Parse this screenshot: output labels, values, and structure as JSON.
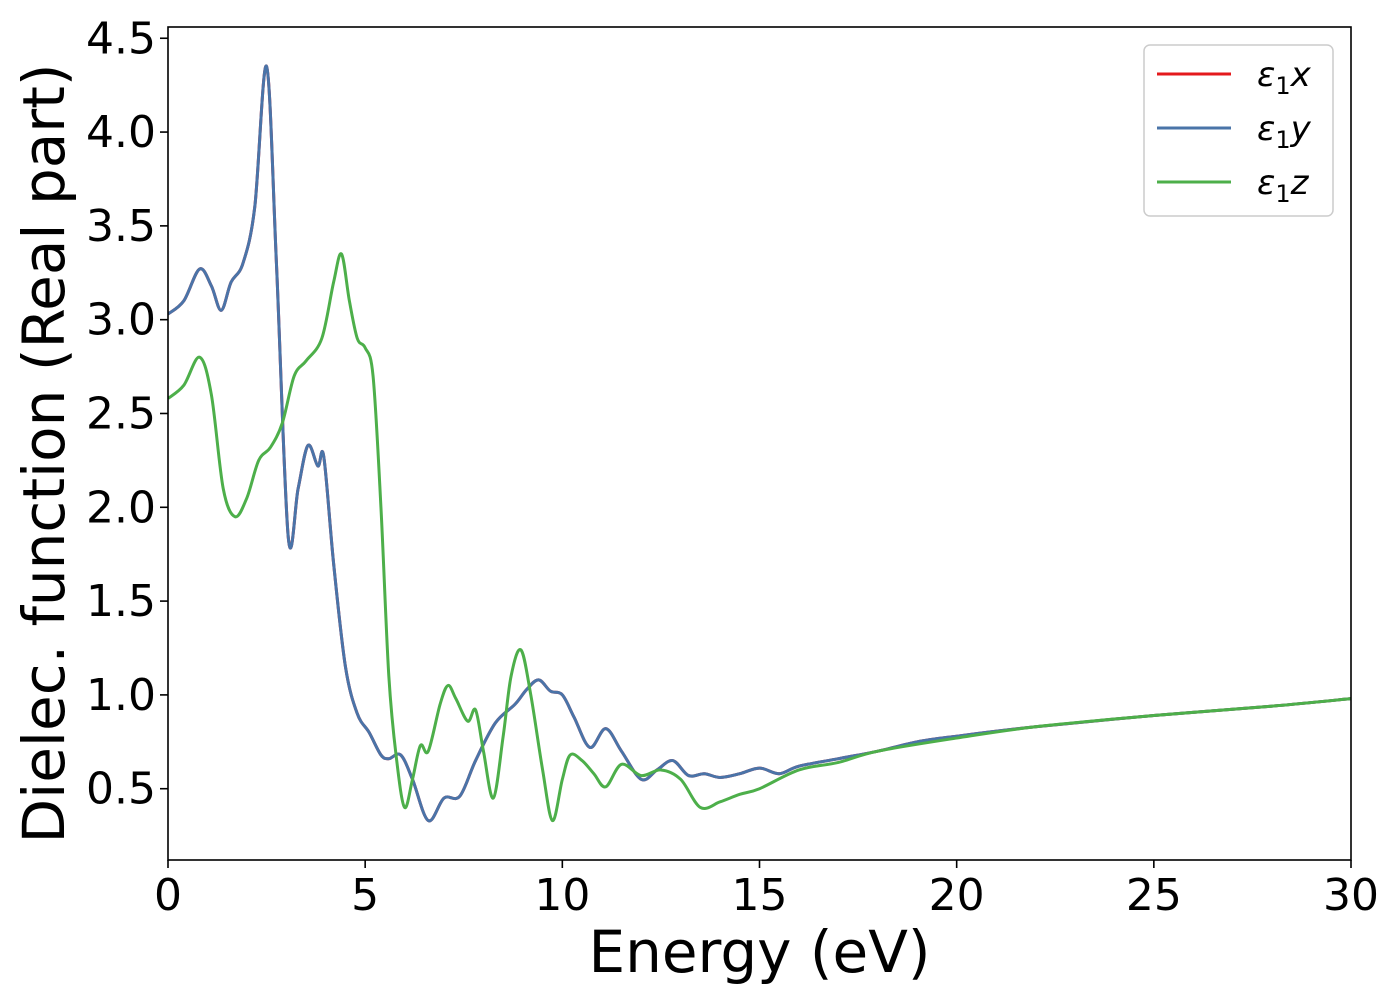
{
  "chart_data": {
    "type": "line",
    "title": "",
    "xlabel": "Energy (eV)",
    "ylabel": "Dielec. function (Real part)",
    "xlim": [
      0,
      30
    ],
    "ylim": [
      0.12,
      4.56
    ],
    "xticks": [
      0,
      5,
      10,
      15,
      20,
      25,
      30
    ],
    "xtick_labels": [
      "0",
      "5",
      "10",
      "15",
      "20",
      "25",
      "30"
    ],
    "yticks": [
      0.5,
      1.0,
      1.5,
      2.0,
      2.5,
      3.0,
      3.5,
      4.0,
      4.5
    ],
    "ytick_labels": [
      "0.5",
      "1.0",
      "1.5",
      "2.0",
      "2.5",
      "3.0",
      "3.5",
      "4.0",
      "4.5"
    ],
    "grid": false,
    "legend_position": "top-right",
    "series": [
      {
        "name": "ε₁x",
        "legend_base": "ε",
        "legend_sub": "1",
        "legend_suffix": "x",
        "color": "#e41a1c",
        "x": [
          0,
          0.4,
          0.8,
          1.1,
          1.35,
          1.6,
          1.9,
          2.2,
          2.5,
          2.75,
          3.05,
          3.3,
          3.55,
          3.8,
          3.95,
          4.2,
          4.5,
          4.8,
          5.1,
          5.4,
          5.6,
          5.9,
          6.2,
          6.6,
          7.0,
          7.4,
          7.8,
          8.3,
          8.8,
          9.1,
          9.4,
          9.7,
          10.0,
          10.3,
          10.7,
          11.1,
          11.5,
          12.0,
          12.4,
          12.8,
          13.2,
          13.6,
          14.0,
          14.5,
          15.0,
          15.5,
          16.0,
          17.0,
          18.0,
          19.0,
          20.0,
          22.0,
          25.0,
          28.0,
          30.0
        ],
        "y": [
          3.03,
          3.1,
          3.27,
          3.18,
          3.05,
          3.2,
          3.3,
          3.6,
          4.35,
          3.3,
          1.84,
          2.1,
          2.33,
          2.22,
          2.27,
          1.7,
          1.15,
          0.9,
          0.8,
          0.68,
          0.66,
          0.68,
          0.55,
          0.33,
          0.45,
          0.46,
          0.65,
          0.85,
          0.95,
          1.03,
          1.08,
          1.02,
          1.0,
          0.88,
          0.72,
          0.82,
          0.7,
          0.55,
          0.6,
          0.65,
          0.57,
          0.58,
          0.56,
          0.58,
          0.61,
          0.58,
          0.62,
          0.66,
          0.7,
          0.75,
          0.78,
          0.83,
          0.89,
          0.94,
          0.98
        ]
      },
      {
        "name": "ε₁y",
        "legend_base": "ε",
        "legend_sub": "1",
        "legend_suffix": "y",
        "color": "#4a74a8",
        "x": [
          0,
          0.4,
          0.8,
          1.1,
          1.35,
          1.6,
          1.9,
          2.2,
          2.5,
          2.75,
          3.05,
          3.3,
          3.55,
          3.8,
          3.95,
          4.2,
          4.5,
          4.8,
          5.1,
          5.4,
          5.6,
          5.9,
          6.2,
          6.6,
          7.0,
          7.4,
          7.8,
          8.3,
          8.8,
          9.1,
          9.4,
          9.7,
          10.0,
          10.3,
          10.7,
          11.1,
          11.5,
          12.0,
          12.4,
          12.8,
          13.2,
          13.6,
          14.0,
          14.5,
          15.0,
          15.5,
          16.0,
          17.0,
          18.0,
          19.0,
          20.0,
          22.0,
          25.0,
          28.0,
          30.0
        ],
        "y": [
          3.03,
          3.1,
          3.27,
          3.18,
          3.05,
          3.2,
          3.3,
          3.6,
          4.35,
          3.3,
          1.84,
          2.1,
          2.33,
          2.22,
          2.27,
          1.7,
          1.15,
          0.9,
          0.8,
          0.68,
          0.66,
          0.68,
          0.55,
          0.33,
          0.45,
          0.46,
          0.65,
          0.85,
          0.95,
          1.03,
          1.08,
          1.02,
          1.0,
          0.88,
          0.72,
          0.82,
          0.7,
          0.55,
          0.6,
          0.65,
          0.57,
          0.58,
          0.56,
          0.58,
          0.61,
          0.58,
          0.62,
          0.66,
          0.7,
          0.75,
          0.78,
          0.83,
          0.89,
          0.94,
          0.98
        ]
      },
      {
        "name": "ε₁z",
        "legend_base": "ε",
        "legend_sub": "1",
        "legend_suffix": "z",
        "color": "#4daf4a",
        "x": [
          0,
          0.4,
          0.8,
          1.1,
          1.4,
          1.7,
          2.0,
          2.3,
          2.6,
          2.9,
          3.2,
          3.5,
          3.9,
          4.2,
          4.4,
          4.6,
          4.8,
          5.0,
          5.2,
          5.4,
          5.6,
          5.8,
          6.0,
          6.2,
          6.4,
          6.6,
          6.9,
          7.1,
          7.3,
          7.6,
          7.8,
          8.0,
          8.25,
          8.5,
          8.7,
          8.95,
          9.2,
          9.5,
          9.75,
          10.0,
          10.2,
          10.5,
          10.8,
          11.1,
          11.5,
          12.0,
          12.5,
          13.0,
          13.5,
          14.0,
          14.5,
          15.0,
          16.0,
          17.0,
          18.0,
          20.0,
          22.0,
          25.0,
          28.0,
          30.0
        ],
        "y": [
          2.58,
          2.65,
          2.8,
          2.6,
          2.1,
          1.95,
          2.05,
          2.25,
          2.32,
          2.45,
          2.7,
          2.78,
          2.9,
          3.2,
          3.35,
          3.1,
          2.9,
          2.85,
          2.7,
          2.0,
          1.1,
          0.65,
          0.4,
          0.55,
          0.73,
          0.7,
          0.95,
          1.05,
          0.98,
          0.86,
          0.92,
          0.7,
          0.45,
          0.78,
          1.1,
          1.24,
          1.0,
          0.6,
          0.33,
          0.55,
          0.68,
          0.65,
          0.58,
          0.51,
          0.63,
          0.57,
          0.6,
          0.55,
          0.4,
          0.43,
          0.47,
          0.5,
          0.6,
          0.64,
          0.7,
          0.77,
          0.83,
          0.89,
          0.94,
          0.98
        ]
      }
    ]
  }
}
